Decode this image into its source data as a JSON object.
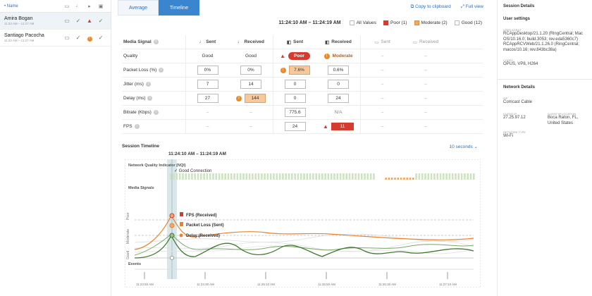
{
  "participants": {
    "name_header": "• Name",
    "items": [
      {
        "name": "Amira Bogan",
        "time": "11:22 AM – 11:27 AM",
        "s1": "✓",
        "s2": "▲",
        "s3": "✓"
      },
      {
        "name": "Santiago Pacocha",
        "time": "11:22 AM – 11:27 AM",
        "s1": "✓",
        "s2": "!",
        "s3": "✓"
      }
    ]
  },
  "tabs": {
    "average": "Average",
    "timeline": "Timeline"
  },
  "links": {
    "copy": "Copy to clipboard",
    "full": "Full view"
  },
  "filter": {
    "range": "11:24:10 AM – 11:24:19 AM",
    "all": "All Values",
    "poor": "Poor (1)",
    "moderate": "Moderate (2)",
    "good": "Good (12)"
  },
  "table": {
    "headers": {
      "media": "Media Signal",
      "sent": "Sent",
      "received": "Received",
      "vsent": "Sent",
      "vreceived": "Received",
      "ssent": "Sent",
      "sreceived": "Received"
    },
    "rows": {
      "quality": {
        "label": "Quality",
        "a1": "Good",
        "a2": "Good",
        "v1": "Poor",
        "v2": "Moderate",
        "s1": "–",
        "s2": "–"
      },
      "packet": {
        "label": "Packet Loss (%)",
        "a1": "0%",
        "a2": "0%",
        "v1": "7.6%",
        "v2": "0.6%",
        "s1": "–",
        "s2": "–"
      },
      "jitter": {
        "label": "Jitter (ms)",
        "a1": "7",
        "a2": "14",
        "v1": "0",
        "v2": "0",
        "s1": "–",
        "s2": "–"
      },
      "delay": {
        "label": "Delay (ms)",
        "a1": "27",
        "a2": "144",
        "v1": "0",
        "v2": "24",
        "s1": "–",
        "s2": "–"
      },
      "bitrate": {
        "label": "Bitrate (Kbps)",
        "a1": "–",
        "a2": "–",
        "v1": "775.6",
        "v2": "N/A",
        "s1": "–",
        "s2": "–"
      },
      "fps": {
        "label": "FPS",
        "a1": "–",
        "a2": "–",
        "v1": "24",
        "v2": "11",
        "s1": "–",
        "s2": "–"
      }
    }
  },
  "timeline": {
    "title": "Session Timeline",
    "range": "11:24:10 AM – 11:24:19 AM",
    "interval": "10 seconds ⌄",
    "nqi": "Network Quality Indicator (NQI)",
    "good_conn": "✓ Good Connection",
    "media_signals": "Media Signals",
    "fps_label": "FPS (Received)",
    "packet_label": "Packet Loss (Sent)",
    "delay_label": "Delay (Received)",
    "y_poor": "Poor",
    "y_moderate": "Moderate",
    "y_good": "Good",
    "events": "Events",
    "ticks": [
      "11:23:50 AM",
      "11:24:30 AM",
      "11:25:10 AM",
      "11:25:50 AM",
      "11:26:30 AM",
      "11:27:10 AM"
    ],
    "colors": {
      "orange": "#e8832d",
      "green": "#3f7a2f",
      "red": "#d63b2f",
      "highlight": "#d9e6ea"
    }
  },
  "details": {
    "title": "Session Details",
    "user_settings": "User settings",
    "user_agent_label": "USER AGENT",
    "user_agent": "RCAppDesktop/21.1.20 (RingCentral; Mac OS/10.16.0; build.3053; rev.eda5360c7) RCAppRCVWeb/21.1.26.0 (RingCentral; macos/10.16; rev.843bc38a)",
    "codec_label": "CODEC",
    "codec": "OPUS, VP8, H264",
    "network_details": "Network Details",
    "isp_label": "ISP",
    "isp": "Comcast Cable",
    "client_ip_label": "CLIENT IP",
    "client_ip": "27.25.97.12",
    "client_loc_label": "CLIENT IP LOCATION",
    "client_loc": "Boca Raton, FL, United States",
    "network_type_label": "NETWORK TYPE",
    "network_type": "Wi-Fi"
  }
}
